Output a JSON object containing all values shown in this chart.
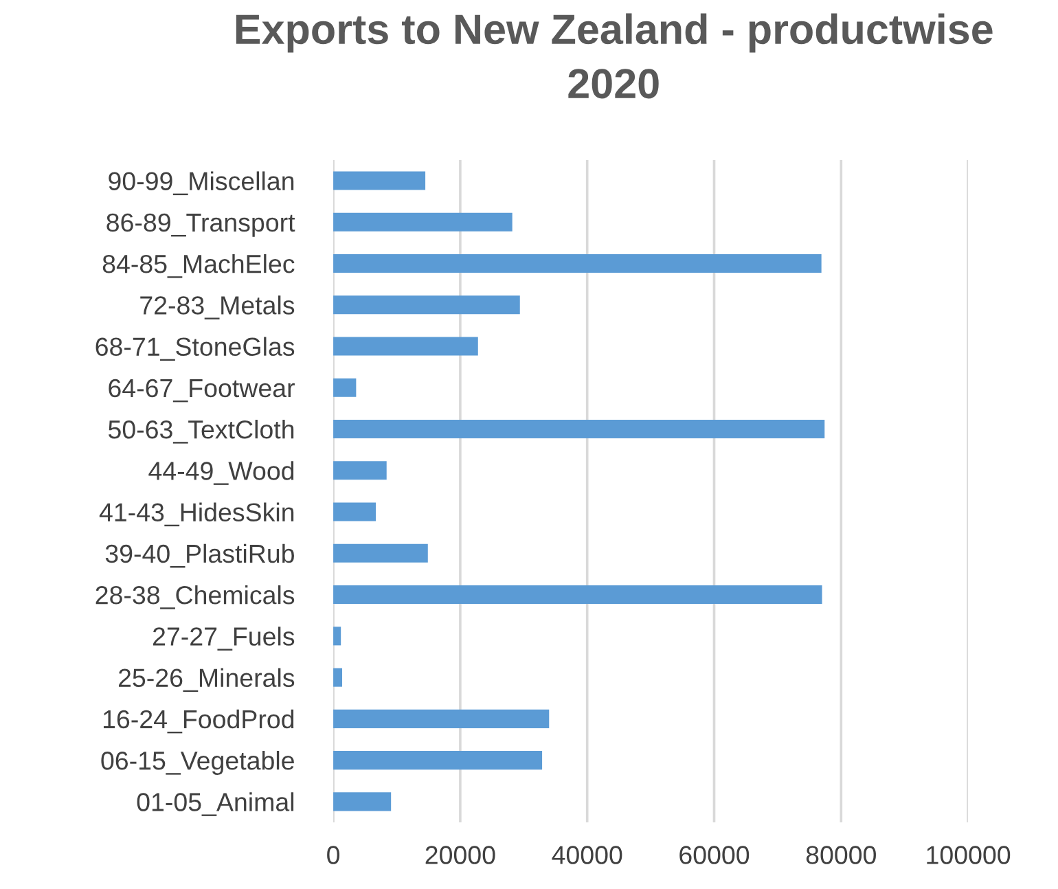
{
  "chart_data": {
    "type": "bar",
    "orientation": "horizontal",
    "title": "Exports to New Zealand - productwise\n2020",
    "categories": [
      "90-99_Miscellan",
      "86-89_Transport",
      "84-85_MachElec",
      "72-83_Metals",
      "68-71_StoneGlas",
      "64-67_Footwear",
      "50-63_TextCloth",
      "44-49_Wood",
      "41-43_HidesSkin",
      "39-40_PlastiRub",
      "28-38_Chemicals",
      "27-27_Fuels",
      "25-26_Minerals",
      "16-24_FoodProd",
      "06-15_Vegetable",
      "01-05_Animal"
    ],
    "values": [
      14500,
      28200,
      76900,
      29400,
      22800,
      3600,
      77400,
      8400,
      6700,
      14900,
      77000,
      1200,
      1400,
      34000,
      32900,
      9100
    ],
    "color": "#5b9bd5",
    "xlim": [
      0,
      100000
    ],
    "xticks": [
      0,
      20000,
      40000,
      60000,
      80000,
      100000
    ],
    "grid": "x",
    "legend": false
  }
}
